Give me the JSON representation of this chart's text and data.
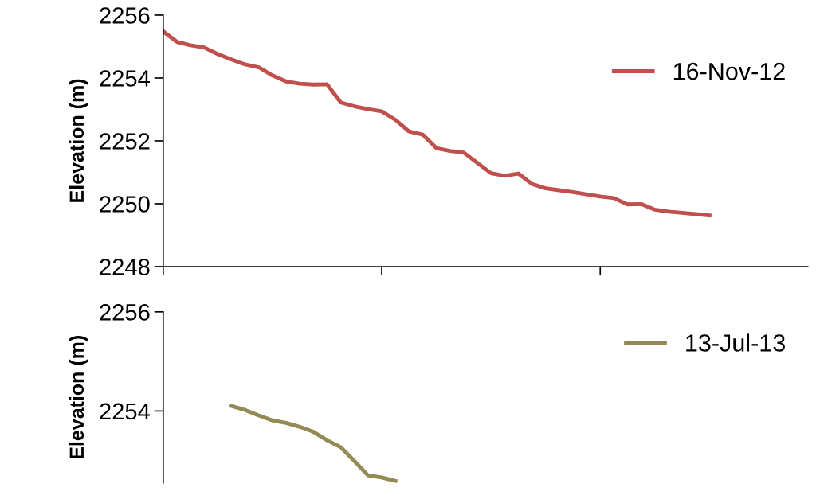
{
  "chart_data": [
    {
      "type": "line",
      "ylabel": "Elevation (m)",
      "categories": [
        null,
        null,
        null,
        null,
        null,
        null,
        null,
        null,
        null,
        null,
        null,
        null,
        null,
        null,
        null,
        null,
        null,
        null,
        null,
        null,
        null,
        null,
        null,
        null,
        null,
        null,
        null,
        null,
        null,
        null,
        null,
        null,
        null,
        null,
        null,
        null,
        null,
        null,
        null,
        null,
        null
      ],
      "series": [
        {
          "name": "16-Nov-12",
          "color": "#c0504d",
          "values": [
            2255.48,
            2255.15,
            2255.04,
            2254.97,
            2254.76,
            2254.59,
            2254.43,
            2254.34,
            2254.08,
            2253.89,
            2253.82,
            2253.79,
            2253.8,
            2253.22,
            2253.1,
            2253.01,
            2252.94,
            2252.67,
            2252.3,
            2252.2,
            2251.77,
            2251.68,
            2251.63,
            2251.3,
            2250.97,
            2250.89,
            2250.96,
            2250.63,
            2250.49,
            2250.43,
            2250.37,
            2250.3,
            2250.23,
            2250.18,
            2249.98,
            2249.99,
            2249.81,
            2249.75,
            2249.71,
            2249.67,
            2249.63
          ]
        }
      ],
      "ylim": [
        2248,
        2256
      ],
      "yticks": [
        2248,
        2250,
        2252,
        2254,
        2256
      ],
      "legend": "upper right",
      "grid": false,
      "marker": "none",
      "line_style": "solid",
      "tick_labels": "y"
    },
    {
      "type": "line",
      "ylabel": "Elevation (m)",
      "categories": [
        null,
        null,
        null,
        null,
        null,
        null,
        null,
        null,
        null,
        null,
        null,
        null,
        null,
        null,
        null,
        null,
        null,
        null,
        null,
        null,
        null,
        null,
        null,
        null,
        null,
        null,
        null,
        null,
        null,
        null,
        null,
        null,
        null,
        null,
        null,
        null,
        null,
        null,
        null,
        null,
        null
      ],
      "series": [
        {
          "name": "13-Jul-13",
          "color": "#948a54",
          "values": [
            null,
            null,
            null,
            null,
            null,
            2254.1,
            2254.02,
            2253.91,
            2253.81,
            2253.76,
            2253.68,
            2253.58,
            2253.41,
            2253.27,
            2252.99,
            2252.7,
            2252.66,
            2252.59,
            null,
            null,
            null,
            null,
            null,
            null,
            null,
            null,
            null,
            null,
            null,
            null,
            null,
            null,
            null,
            null,
            null,
            null,
            null,
            null,
            null,
            null,
            null
          ]
        }
      ],
      "ylim": [
        2252.55,
        2256
      ],
      "yticks": [
        2254,
        2256
      ],
      "legend": "upper right",
      "grid": false,
      "marker": "none",
      "line_style": "solid",
      "tick_labels": "y"
    }
  ]
}
